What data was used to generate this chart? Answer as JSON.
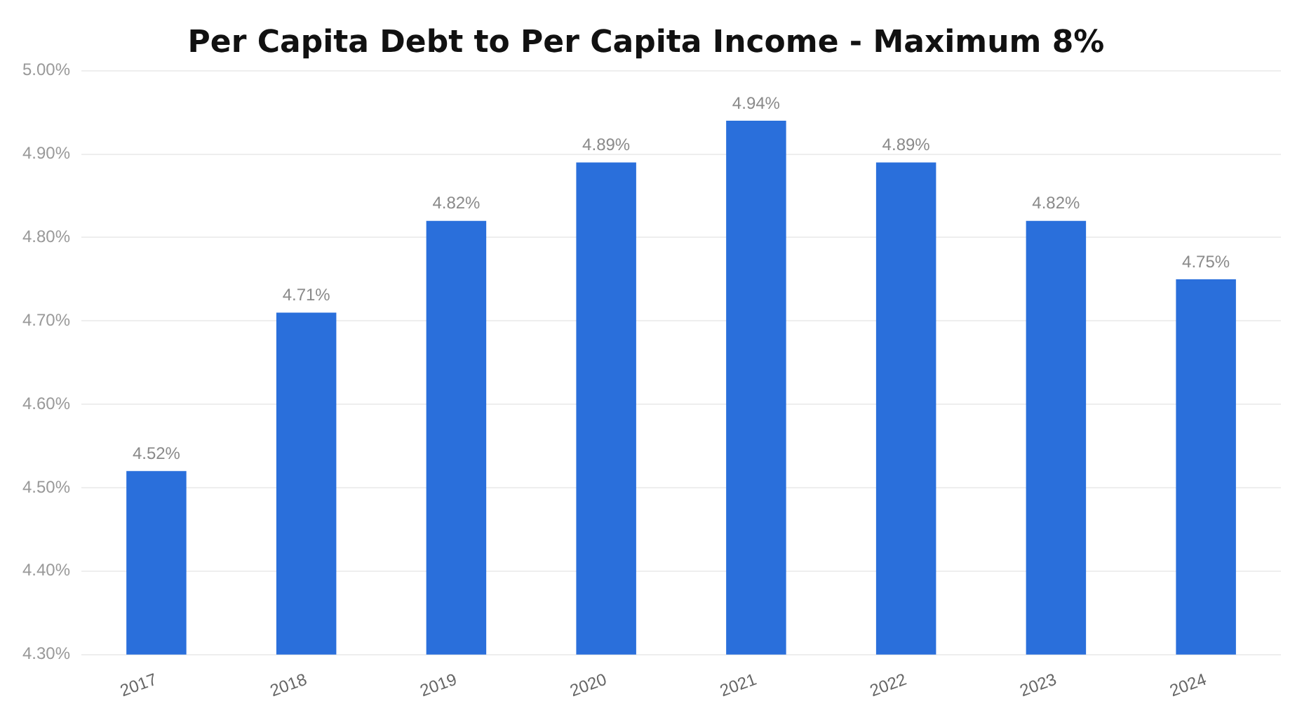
{
  "chart_data": {
    "type": "bar",
    "title": "Per Capita Debt to Per Capita Income - Maximum 8%",
    "categories": [
      "2017",
      "2018",
      "2019",
      "2020",
      "2021",
      "2022",
      "2023",
      "2024"
    ],
    "values": [
      4.52,
      4.71,
      4.82,
      4.89,
      4.94,
      4.89,
      4.82,
      4.75
    ],
    "value_labels": [
      "4.52%",
      "4.71%",
      "4.82%",
      "4.89%",
      "4.94%",
      "4.89%",
      "4.82%",
      "4.75%"
    ],
    "color": "#2a6fdb",
    "ylim": [
      4.3,
      5.0
    ],
    "yticks": [
      {
        "value": 4.3,
        "label": "4.30%"
      },
      {
        "value": 4.4,
        "label": "4.40%"
      },
      {
        "value": 4.5,
        "label": "4.50%"
      },
      {
        "value": 4.6,
        "label": "4.60%"
      },
      {
        "value": 4.7,
        "label": "4.70%"
      },
      {
        "value": 4.8,
        "label": "4.80%"
      },
      {
        "value": 4.9,
        "label": "4.90%"
      },
      {
        "value": 5.0,
        "label": "5.00%"
      }
    ],
    "grid": "y",
    "legend": false
  }
}
